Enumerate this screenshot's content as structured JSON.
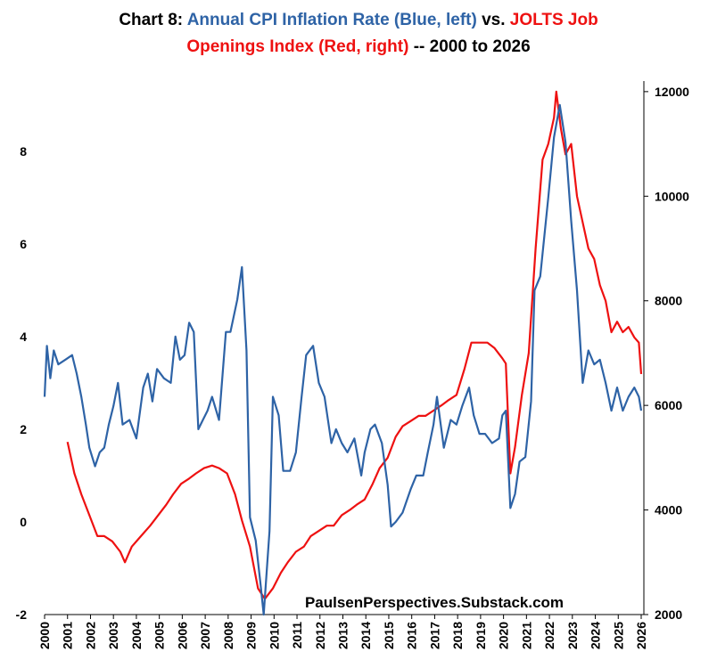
{
  "chart_data": {
    "type": "line",
    "title_parts": [
      [
        {
          "text": "Chart 8: ",
          "color": "#000000"
        },
        {
          "text": "Annual CPI Inflation Rate (Blue, left)",
          "color": "#2e63a6"
        },
        {
          "text": " vs. ",
          "color": "#000000"
        },
        {
          "text": "JOLTS Job",
          "color": "#ee1111"
        }
      ],
      [
        {
          "text": "Openings Index (Red, right)",
          "color": "#ee1111"
        },
        {
          "text": " -- 2000 to 2026",
          "color": "#000000"
        }
      ]
    ],
    "annotation": "PaulsenPerspectives.Substack.com",
    "xlim": [
      2000,
      2026
    ],
    "xticks": [
      2000,
      2001,
      2002,
      2003,
      2004,
      2005,
      2006,
      2007,
      2008,
      2009,
      2010,
      2011,
      2012,
      2013,
      2014,
      2015,
      2016,
      2017,
      2018,
      2019,
      2020,
      2021,
      2022,
      2023,
      2024,
      2025,
      2026
    ],
    "ylim": [
      -2,
      9.4
    ],
    "yticks": [
      -2,
      0,
      2,
      4,
      6,
      8
    ],
    "y2lim": [
      2000,
      12100
    ],
    "y2ticks": [
      2000,
      4000,
      6000,
      8000,
      10000,
      12000
    ],
    "series": [
      {
        "name": "Annual CPI Inflation Rate",
        "color": "#2e63a6",
        "axis": "y",
        "x": [
          2000.0,
          2000.1,
          2000.25,
          2000.4,
          2000.6,
          2000.9,
          2001.2,
          2001.4,
          2001.6,
          2001.8,
          2001.95,
          2002.2,
          2002.4,
          2002.6,
          2002.8,
          2003.0,
          2003.2,
          2003.4,
          2003.7,
          2004.0,
          2004.3,
          2004.5,
          2004.7,
          2004.9,
          2005.2,
          2005.5,
          2005.7,
          2005.9,
          2006.1,
          2006.3,
          2006.5,
          2006.7,
          2006.9,
          2007.1,
          2007.3,
          2007.6,
          2007.9,
          2008.1,
          2008.4,
          2008.6,
          2008.8,
          2008.95,
          2009.2,
          2009.4,
          2009.55,
          2009.8,
          2009.95,
          2010.2,
          2010.4,
          2010.7,
          2010.95,
          2011.2,
          2011.4,
          2011.7,
          2011.95,
          2012.2,
          2012.5,
          2012.7,
          2012.95,
          2013.2,
          2013.5,
          2013.8,
          2013.95,
          2014.2,
          2014.4,
          2014.7,
          2014.95,
          2015.1,
          2015.3,
          2015.6,
          2015.95,
          2016.2,
          2016.5,
          2016.7,
          2016.95,
          2017.1,
          2017.4,
          2017.7,
          2017.95,
          2018.2,
          2018.5,
          2018.7,
          2018.95,
          2019.2,
          2019.5,
          2019.8,
          2019.95,
          2020.1,
          2020.3,
          2020.5,
          2020.7,
          2020.95,
          2021.2,
          2021.35,
          2021.6,
          2021.95,
          2022.2,
          2022.45,
          2022.7,
          2022.95,
          2023.2,
          2023.45,
          2023.7,
          2023.95,
          2024.2,
          2024.45,
          2024.7,
          2024.95,
          2025.2,
          2025.45,
          2025.7,
          2025.9,
          2026.0
        ],
        "values": [
          2.7,
          3.8,
          3.1,
          3.7,
          3.4,
          3.5,
          3.6,
          3.2,
          2.7,
          2.1,
          1.6,
          1.2,
          1.5,
          1.6,
          2.1,
          2.5,
          3.0,
          2.1,
          2.2,
          1.8,
          2.9,
          3.2,
          2.6,
          3.3,
          3.1,
          3.0,
          4.0,
          3.5,
          3.6,
          4.3,
          4.1,
          2.0,
          2.2,
          2.4,
          2.7,
          2.2,
          4.1,
          4.1,
          4.8,
          5.5,
          3.7,
          0.1,
          -0.4,
          -1.3,
          -2.0,
          -0.2,
          2.7,
          2.3,
          1.1,
          1.1,
          1.5,
          2.7,
          3.6,
          3.8,
          3.0,
          2.7,
          1.7,
          2.0,
          1.7,
          1.5,
          1.8,
          1.0,
          1.5,
          2.0,
          2.1,
          1.7,
          0.8,
          -0.1,
          0.0,
          0.2,
          0.7,
          1.0,
          1.0,
          1.5,
          2.1,
          2.7,
          1.6,
          2.2,
          2.1,
          2.5,
          2.9,
          2.3,
          1.9,
          1.9,
          1.7,
          1.8,
          2.3,
          2.4,
          0.3,
          0.6,
          1.3,
          1.4,
          2.6,
          5.0,
          5.3,
          7.0,
          8.3,
          9.0,
          8.2,
          6.5,
          5.0,
          3.0,
          3.7,
          3.4,
          3.5,
          3.0,
          2.4,
          2.9,
          2.4,
          2.7,
          2.9,
          2.7,
          2.4
        ]
      },
      {
        "name": "JOLTS Job Openings Index",
        "color": "#ee1111",
        "axis": "y2",
        "x": [
          2001.0,
          2001.3,
          2001.6,
          2001.95,
          2002.3,
          2002.6,
          2002.95,
          2003.3,
          2003.5,
          2003.8,
          2004.2,
          2004.6,
          2004.95,
          2005.3,
          2005.6,
          2005.95,
          2006.3,
          2006.6,
          2006.95,
          2007.3,
          2007.6,
          2007.95,
          2008.3,
          2008.6,
          2008.95,
          2009.3,
          2009.6,
          2009.95,
          2010.3,
          2010.6,
          2010.95,
          2011.3,
          2011.6,
          2011.95,
          2012.3,
          2012.6,
          2012.95,
          2013.3,
          2013.6,
          2013.95,
          2014.3,
          2014.6,
          2014.95,
          2015.3,
          2015.6,
          2015.95,
          2016.3,
          2016.6,
          2016.95,
          2017.3,
          2017.6,
          2017.95,
          2018.3,
          2018.6,
          2018.95,
          2019.3,
          2019.6,
          2019.95,
          2020.1,
          2020.3,
          2020.5,
          2020.8,
          2021.1,
          2021.4,
          2021.7,
          2021.95,
          2022.2,
          2022.3,
          2022.5,
          2022.7,
          2022.95,
          2023.2,
          2023.45,
          2023.7,
          2023.95,
          2024.2,
          2024.45,
          2024.7,
          2024.95,
          2025.2,
          2025.45,
          2025.7,
          2025.9,
          2026.0
        ],
        "values": [
          5300,
          4700,
          4300,
          3900,
          3500,
          3500,
          3400,
          3200,
          3000,
          3300,
          3500,
          3700,
          3900,
          4100,
          4300,
          4500,
          4600,
          4700,
          4800,
          4850,
          4800,
          4700,
          4300,
          3800,
          3300,
          2500,
          2300,
          2500,
          2800,
          3000,
          3200,
          3300,
          3500,
          3600,
          3700,
          3700,
          3900,
          4000,
          4100,
          4200,
          4500,
          4800,
          5000,
          5400,
          5600,
          5700,
          5800,
          5800,
          5900,
          6000,
          6100,
          6200,
          6700,
          7200,
          7200,
          7200,
          7100,
          6900,
          6800,
          4700,
          5200,
          6200,
          7000,
          9000,
          10700,
          11000,
          11500,
          12000,
          11300,
          10800,
          11000,
          10000,
          9500,
          9000,
          8800,
          8300,
          8000,
          7400,
          7600,
          7400,
          7500,
          7300,
          7200,
          6600
        ]
      }
    ]
  }
}
